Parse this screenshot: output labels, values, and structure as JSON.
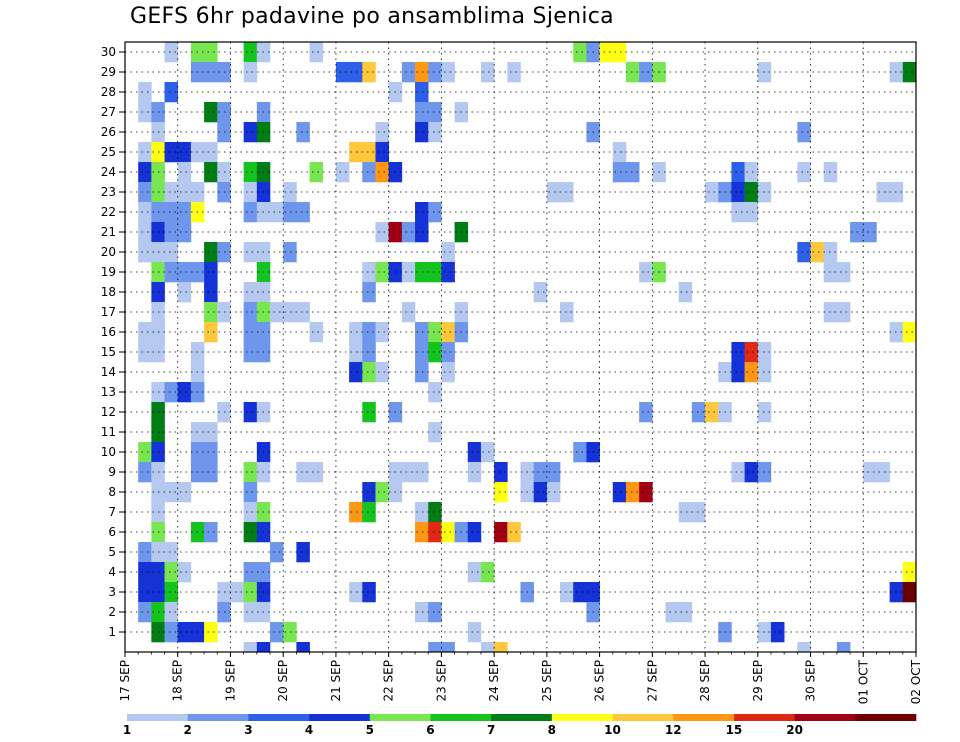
{
  "title": "GEFS 6hr padavine po ansamblima Sjenica",
  "chart_data": {
    "type": "heatmap",
    "title": "GEFS 6hr padavine po ansamblima Sjenica",
    "y_ticks": [
      "1",
      "2",
      "3",
      "4",
      "5",
      "6",
      "7",
      "8",
      "9",
      "10",
      "11",
      "12",
      "13",
      "14",
      "15",
      "16",
      "17",
      "18",
      "19",
      "20",
      "21",
      "22",
      "23",
      "24",
      "25",
      "26",
      "27",
      "28",
      "29",
      "30"
    ],
    "x_ticks": [
      "17 SEP",
      "18 SEP",
      "19 SEP",
      "20 SEP",
      "21 SEP",
      "22 SEP",
      "23 SEP",
      "24 SEP",
      "25 SEP",
      "26 SEP",
      "27 SEP",
      "28 SEP",
      "29 SEP",
      "30 SEP",
      "01 OCT",
      "02 OCT"
    ],
    "x_steps_per_day": 4,
    "x_total_steps": 60,
    "grid": true,
    "colorbar": {
      "levels": [
        "1",
        "2",
        "3",
        "4",
        "5",
        "6",
        "7",
        "8",
        "10",
        "12",
        "15",
        "20"
      ],
      "colors": [
        "#b4c8f0",
        "#6e96ec",
        "#2e5fe8",
        "#1432d6",
        "#78e650",
        "#14c31e",
        "#007d14",
        "#ffff14",
        "#ffc83c",
        "#ff9614",
        "#e12814",
        "#a00014",
        "#6e0000"
      ]
    },
    "cells": [
      [
        30,
        4,
        0
      ],
      [
        30,
        6,
        4
      ],
      [
        30,
        7,
        4
      ],
      [
        30,
        10,
        5
      ],
      [
        30,
        11,
        0
      ],
      [
        30,
        15,
        0
      ],
      [
        30,
        35,
        4
      ],
      [
        30,
        36,
        1
      ],
      [
        30,
        37,
        7
      ],
      [
        30,
        38,
        7
      ],
      [
        29,
        6,
        1
      ],
      [
        29,
        7,
        1
      ],
      [
        29,
        8,
        1
      ],
      [
        29,
        10,
        0
      ],
      [
        29,
        17,
        2
      ],
      [
        29,
        18,
        2
      ],
      [
        29,
        19,
        8
      ],
      [
        29,
        22,
        1
      ],
      [
        29,
        23,
        9
      ],
      [
        29,
        24,
        1
      ],
      [
        29,
        25,
        0
      ],
      [
        29,
        28,
        0
      ],
      [
        29,
        30,
        0
      ],
      [
        29,
        39,
        4
      ],
      [
        29,
        40,
        1
      ],
      [
        29,
        41,
        4
      ],
      [
        29,
        49,
        0
      ],
      [
        29,
        59,
        0
      ],
      [
        29,
        60,
        6
      ],
      [
        28,
        2,
        0
      ],
      [
        28,
        4,
        2
      ],
      [
        28,
        21,
        0
      ],
      [
        28,
        23,
        2
      ],
      [
        27,
        2,
        0
      ],
      [
        27,
        3,
        1
      ],
      [
        27,
        7,
        6
      ],
      [
        27,
        8,
        1
      ],
      [
        27,
        11,
        1
      ],
      [
        27,
        23,
        1
      ],
      [
        27,
        24,
        1
      ],
      [
        27,
        26,
        0
      ],
      [
        26,
        3,
        0
      ],
      [
        26,
        8,
        1
      ],
      [
        26,
        10,
        3
      ],
      [
        26,
        11,
        6
      ],
      [
        26,
        14,
        1
      ],
      [
        26,
        20,
        0
      ],
      [
        26,
        23,
        3
      ],
      [
        26,
        24,
        0
      ],
      [
        26,
        36,
        1
      ],
      [
        26,
        52,
        1
      ],
      [
        25,
        2,
        0
      ],
      [
        25,
        3,
        7
      ],
      [
        25,
        4,
        3
      ],
      [
        25,
        5,
        3
      ],
      [
        25,
        6,
        0
      ],
      [
        25,
        7,
        0
      ],
      [
        25,
        18,
        8
      ],
      [
        25,
        19,
        8
      ],
      [
        25,
        20,
        3
      ],
      [
        25,
        38,
        0
      ],
      [
        24,
        2,
        3
      ],
      [
        24,
        3,
        4
      ],
      [
        24,
        5,
        0
      ],
      [
        24,
        7,
        6
      ],
      [
        24,
        8,
        0
      ],
      [
        24,
        10,
        5
      ],
      [
        24,
        11,
        6
      ],
      [
        24,
        15,
        4
      ],
      [
        24,
        17,
        0
      ],
      [
        24,
        19,
        1
      ],
      [
        24,
        20,
        9
      ],
      [
        24,
        21,
        3
      ],
      [
        24,
        38,
        1
      ],
      [
        24,
        39,
        1
      ],
      [
        24,
        41,
        0
      ],
      [
        24,
        47,
        2
      ],
      [
        24,
        48,
        0
      ],
      [
        24,
        52,
        0
      ],
      [
        24,
        54,
        0
      ],
      [
        23,
        2,
        1
      ],
      [
        23,
        3,
        4
      ],
      [
        23,
        4,
        0
      ],
      [
        23,
        5,
        0
      ],
      [
        23,
        6,
        0
      ],
      [
        23,
        8,
        1
      ],
      [
        23,
        10,
        0
      ],
      [
        23,
        11,
        3
      ],
      [
        23,
        13,
        0
      ],
      [
        23,
        33,
        0
      ],
      [
        23,
        34,
        0
      ],
      [
        23,
        45,
        0
      ],
      [
        23,
        46,
        1
      ],
      [
        23,
        47,
        3
      ],
      [
        23,
        48,
        6
      ],
      [
        23,
        49,
        0
      ],
      [
        23,
        58,
        0
      ],
      [
        23,
        59,
        0
      ],
      [
        22,
        2,
        0
      ],
      [
        22,
        3,
        1
      ],
      [
        22,
        4,
        1
      ],
      [
        22,
        5,
        1
      ],
      [
        22,
        6,
        7
      ],
      [
        22,
        10,
        1
      ],
      [
        22,
        11,
        0
      ],
      [
        22,
        12,
        0
      ],
      [
        22,
        13,
        1
      ],
      [
        22,
        14,
        1
      ],
      [
        22,
        23,
        3
      ],
      [
        22,
        24,
        1
      ],
      [
        22,
        47,
        0
      ],
      [
        22,
        48,
        0
      ],
      [
        21,
        2,
        0
      ],
      [
        21,
        3,
        3
      ],
      [
        21,
        4,
        1
      ],
      [
        21,
        5,
        1
      ],
      [
        21,
        20,
        0
      ],
      [
        21,
        21,
        11
      ],
      [
        21,
        22,
        1
      ],
      [
        21,
        23,
        3
      ],
      [
        21,
        26,
        6
      ],
      [
        21,
        56,
        1
      ],
      [
        21,
        57,
        1
      ],
      [
        20,
        2,
        0
      ],
      [
        20,
        3,
        0
      ],
      [
        20,
        4,
        0
      ],
      [
        20,
        7,
        6
      ],
      [
        20,
        8,
        1
      ],
      [
        20,
        10,
        0
      ],
      [
        20,
        11,
        0
      ],
      [
        20,
        13,
        1
      ],
      [
        20,
        25,
        0
      ],
      [
        20,
        52,
        2
      ],
      [
        20,
        53,
        8
      ],
      [
        20,
        54,
        0
      ],
      [
        19,
        3,
        4
      ],
      [
        19,
        4,
        1
      ],
      [
        19,
        5,
        1
      ],
      [
        19,
        6,
        1
      ],
      [
        19,
        7,
        3
      ],
      [
        19,
        11,
        5
      ],
      [
        19,
        19,
        0
      ],
      [
        19,
        20,
        4
      ],
      [
        19,
        21,
        3
      ],
      [
        19,
        22,
        0
      ],
      [
        19,
        23,
        5
      ],
      [
        19,
        24,
        5
      ],
      [
        19,
        25,
        3
      ],
      [
        19,
        40,
        0
      ],
      [
        19,
        41,
        4
      ],
      [
        19,
        54,
        0
      ],
      [
        19,
        55,
        0
      ],
      [
        18,
        3,
        3
      ],
      [
        18,
        5,
        0
      ],
      [
        18,
        7,
        3
      ],
      [
        18,
        10,
        0
      ],
      [
        18,
        11,
        0
      ],
      [
        18,
        19,
        1
      ],
      [
        18,
        32,
        0
      ],
      [
        18,
        43,
        0
      ],
      [
        17,
        3,
        0
      ],
      [
        17,
        7,
        4
      ],
      [
        17,
        8,
        0
      ],
      [
        17,
        10,
        1
      ],
      [
        17,
        11,
        4
      ],
      [
        17,
        12,
        0
      ],
      [
        17,
        13,
        0
      ],
      [
        17,
        14,
        0
      ],
      [
        17,
        22,
        0
      ],
      [
        17,
        26,
        0
      ],
      [
        17,
        34,
        0
      ],
      [
        17,
        54,
        0
      ],
      [
        17,
        55,
        0
      ],
      [
        16,
        2,
        0
      ],
      [
        16,
        3,
        0
      ],
      [
        16,
        7,
        8
      ],
      [
        16,
        10,
        1
      ],
      [
        16,
        11,
        1
      ],
      [
        16,
        15,
        0
      ],
      [
        16,
        18,
        0
      ],
      [
        16,
        19,
        1
      ],
      [
        16,
        20,
        0
      ],
      [
        16,
        23,
        1
      ],
      [
        16,
        24,
        4
      ],
      [
        16,
        25,
        8
      ],
      [
        16,
        26,
        1
      ],
      [
        16,
        59,
        0
      ],
      [
        16,
        60,
        7
      ],
      [
        15,
        2,
        0
      ],
      [
        15,
        3,
        0
      ],
      [
        15,
        6,
        0
      ],
      [
        15,
        10,
        1
      ],
      [
        15,
        11,
        1
      ],
      [
        15,
        18,
        0
      ],
      [
        15,
        19,
        1
      ],
      [
        15,
        23,
        1
      ],
      [
        15,
        24,
        5
      ],
      [
        15,
        25,
        1
      ],
      [
        15,
        47,
        3
      ],
      [
        15,
        48,
        10
      ],
      [
        15,
        49,
        0
      ],
      [
        14,
        6,
        0
      ],
      [
        14,
        18,
        3
      ],
      [
        14,
        19,
        4
      ],
      [
        14,
        20,
        0
      ],
      [
        14,
        23,
        1
      ],
      [
        14,
        25,
        0
      ],
      [
        14,
        46,
        0
      ],
      [
        14,
        47,
        3
      ],
      [
        14,
        48,
        9
      ],
      [
        14,
        49,
        0
      ],
      [
        13,
        3,
        0
      ],
      [
        13,
        4,
        1
      ],
      [
        13,
        5,
        3
      ],
      [
        13,
        6,
        1
      ],
      [
        13,
        24,
        0
      ],
      [
        12,
        3,
        6
      ],
      [
        12,
        8,
        0
      ],
      [
        12,
        10,
        3
      ],
      [
        12,
        11,
        0
      ],
      [
        12,
        19,
        5
      ],
      [
        12,
        21,
        1
      ],
      [
        12,
        40,
        1
      ],
      [
        12,
        44,
        1
      ],
      [
        12,
        45,
        8
      ],
      [
        12,
        46,
        0
      ],
      [
        12,
        49,
        0
      ],
      [
        11,
        3,
        6
      ],
      [
        11,
        6,
        0
      ],
      [
        11,
        7,
        0
      ],
      [
        11,
        24,
        0
      ],
      [
        10,
        2,
        4
      ],
      [
        10,
        3,
        3
      ],
      [
        10,
        6,
        1
      ],
      [
        10,
        7,
        1
      ],
      [
        10,
        11,
        3
      ],
      [
        10,
        27,
        3
      ],
      [
        10,
        28,
        0
      ],
      [
        10,
        35,
        1
      ],
      [
        10,
        36,
        3
      ],
      [
        9,
        2,
        1
      ],
      [
        9,
        3,
        0
      ],
      [
        9,
        6,
        1
      ],
      [
        9,
        7,
        1
      ],
      [
        9,
        10,
        4
      ],
      [
        9,
        11,
        0
      ],
      [
        9,
        14,
        0
      ],
      [
        9,
        15,
        0
      ],
      [
        9,
        21,
        0
      ],
      [
        9,
        22,
        0
      ],
      [
        9,
        23,
        0
      ],
      [
        9,
        27,
        0
      ],
      [
        9,
        29,
        3
      ],
      [
        9,
        31,
        0
      ],
      [
        9,
        32,
        1
      ],
      [
        9,
        33,
        1
      ],
      [
        9,
        47,
        0
      ],
      [
        9,
        48,
        3
      ],
      [
        9,
        49,
        1
      ],
      [
        9,
        57,
        0
      ],
      [
        9,
        58,
        0
      ],
      [
        8,
        3,
        0
      ],
      [
        8,
        4,
        0
      ],
      [
        8,
        5,
        0
      ],
      [
        8,
        10,
        1
      ],
      [
        8,
        19,
        3
      ],
      [
        8,
        20,
        4
      ],
      [
        8,
        21,
        0
      ],
      [
        8,
        29,
        7
      ],
      [
        8,
        31,
        0
      ],
      [
        8,
        32,
        3
      ],
      [
        8,
        33,
        0
      ],
      [
        8,
        38,
        3
      ],
      [
        8,
        39,
        9
      ],
      [
        8,
        40,
        11
      ],
      [
        7,
        3,
        0
      ],
      [
        7,
        10,
        0
      ],
      [
        7,
        11,
        4
      ],
      [
        7,
        18,
        9
      ],
      [
        7,
        19,
        5
      ],
      [
        7,
        23,
        0
      ],
      [
        7,
        24,
        6
      ],
      [
        7,
        43,
        0
      ],
      [
        7,
        44,
        0
      ],
      [
        6,
        3,
        4
      ],
      [
        6,
        6,
        5
      ],
      [
        6,
        7,
        1
      ],
      [
        6,
        10,
        6
      ],
      [
        6,
        11,
        3
      ],
      [
        6,
        23,
        9
      ],
      [
        6,
        24,
        10
      ],
      [
        6,
        25,
        7
      ],
      [
        6,
        26,
        1
      ],
      [
        6,
        27,
        3
      ],
      [
        6,
        29,
        11
      ],
      [
        6,
        30,
        8
      ],
      [
        5,
        2,
        1
      ],
      [
        5,
        3,
        0
      ],
      [
        5,
        4,
        0
      ],
      [
        5,
        12,
        1
      ],
      [
        5,
        14,
        3
      ],
      [
        4,
        2,
        3
      ],
      [
        4,
        3,
        3
      ],
      [
        4,
        4,
        4
      ],
      [
        4,
        5,
        0
      ],
      [
        4,
        10,
        1
      ],
      [
        4,
        11,
        1
      ],
      [
        4,
        27,
        0
      ],
      [
        4,
        28,
        4
      ],
      [
        4,
        60,
        7
      ],
      [
        3,
        2,
        3
      ],
      [
        3,
        3,
        3
      ],
      [
        3,
        4,
        5
      ],
      [
        3,
        8,
        0
      ],
      [
        3,
        9,
        0
      ],
      [
        3,
        10,
        4
      ],
      [
        3,
        11,
        3
      ],
      [
        3,
        18,
        0
      ],
      [
        3,
        19,
        3
      ],
      [
        3,
        31,
        1
      ],
      [
        3,
        34,
        0
      ],
      [
        3,
        35,
        3
      ],
      [
        3,
        36,
        3
      ],
      [
        3,
        59,
        3
      ],
      [
        3,
        60,
        12
      ],
      [
        2,
        2,
        1
      ],
      [
        2,
        3,
        5
      ],
      [
        2,
        4,
        0
      ],
      [
        2,
        8,
        1
      ],
      [
        2,
        10,
        0
      ],
      [
        2,
        11,
        0
      ],
      [
        2,
        23,
        0
      ],
      [
        2,
        24,
        1
      ],
      [
        2,
        36,
        1
      ],
      [
        2,
        42,
        0
      ],
      [
        2,
        43,
        0
      ],
      [
        1,
        3,
        6
      ],
      [
        1,
        4,
        1
      ],
      [
        1,
        5,
        3
      ],
      [
        1,
        6,
        3
      ],
      [
        1,
        7,
        7
      ],
      [
        1,
        12,
        1
      ],
      [
        1,
        13,
        4
      ],
      [
        1,
        27,
        0
      ],
      [
        1,
        46,
        1
      ],
      [
        1,
        49,
        0
      ],
      [
        1,
        50,
        3
      ]
    ],
    "bottom_strip": [
      [
        10,
        0
      ],
      [
        11,
        3
      ],
      [
        14,
        3
      ],
      [
        24,
        1
      ],
      [
        25,
        1
      ],
      [
        28,
        0
      ],
      [
        29,
        8
      ],
      [
        52,
        0
      ],
      [
        55,
        1
      ]
    ]
  }
}
